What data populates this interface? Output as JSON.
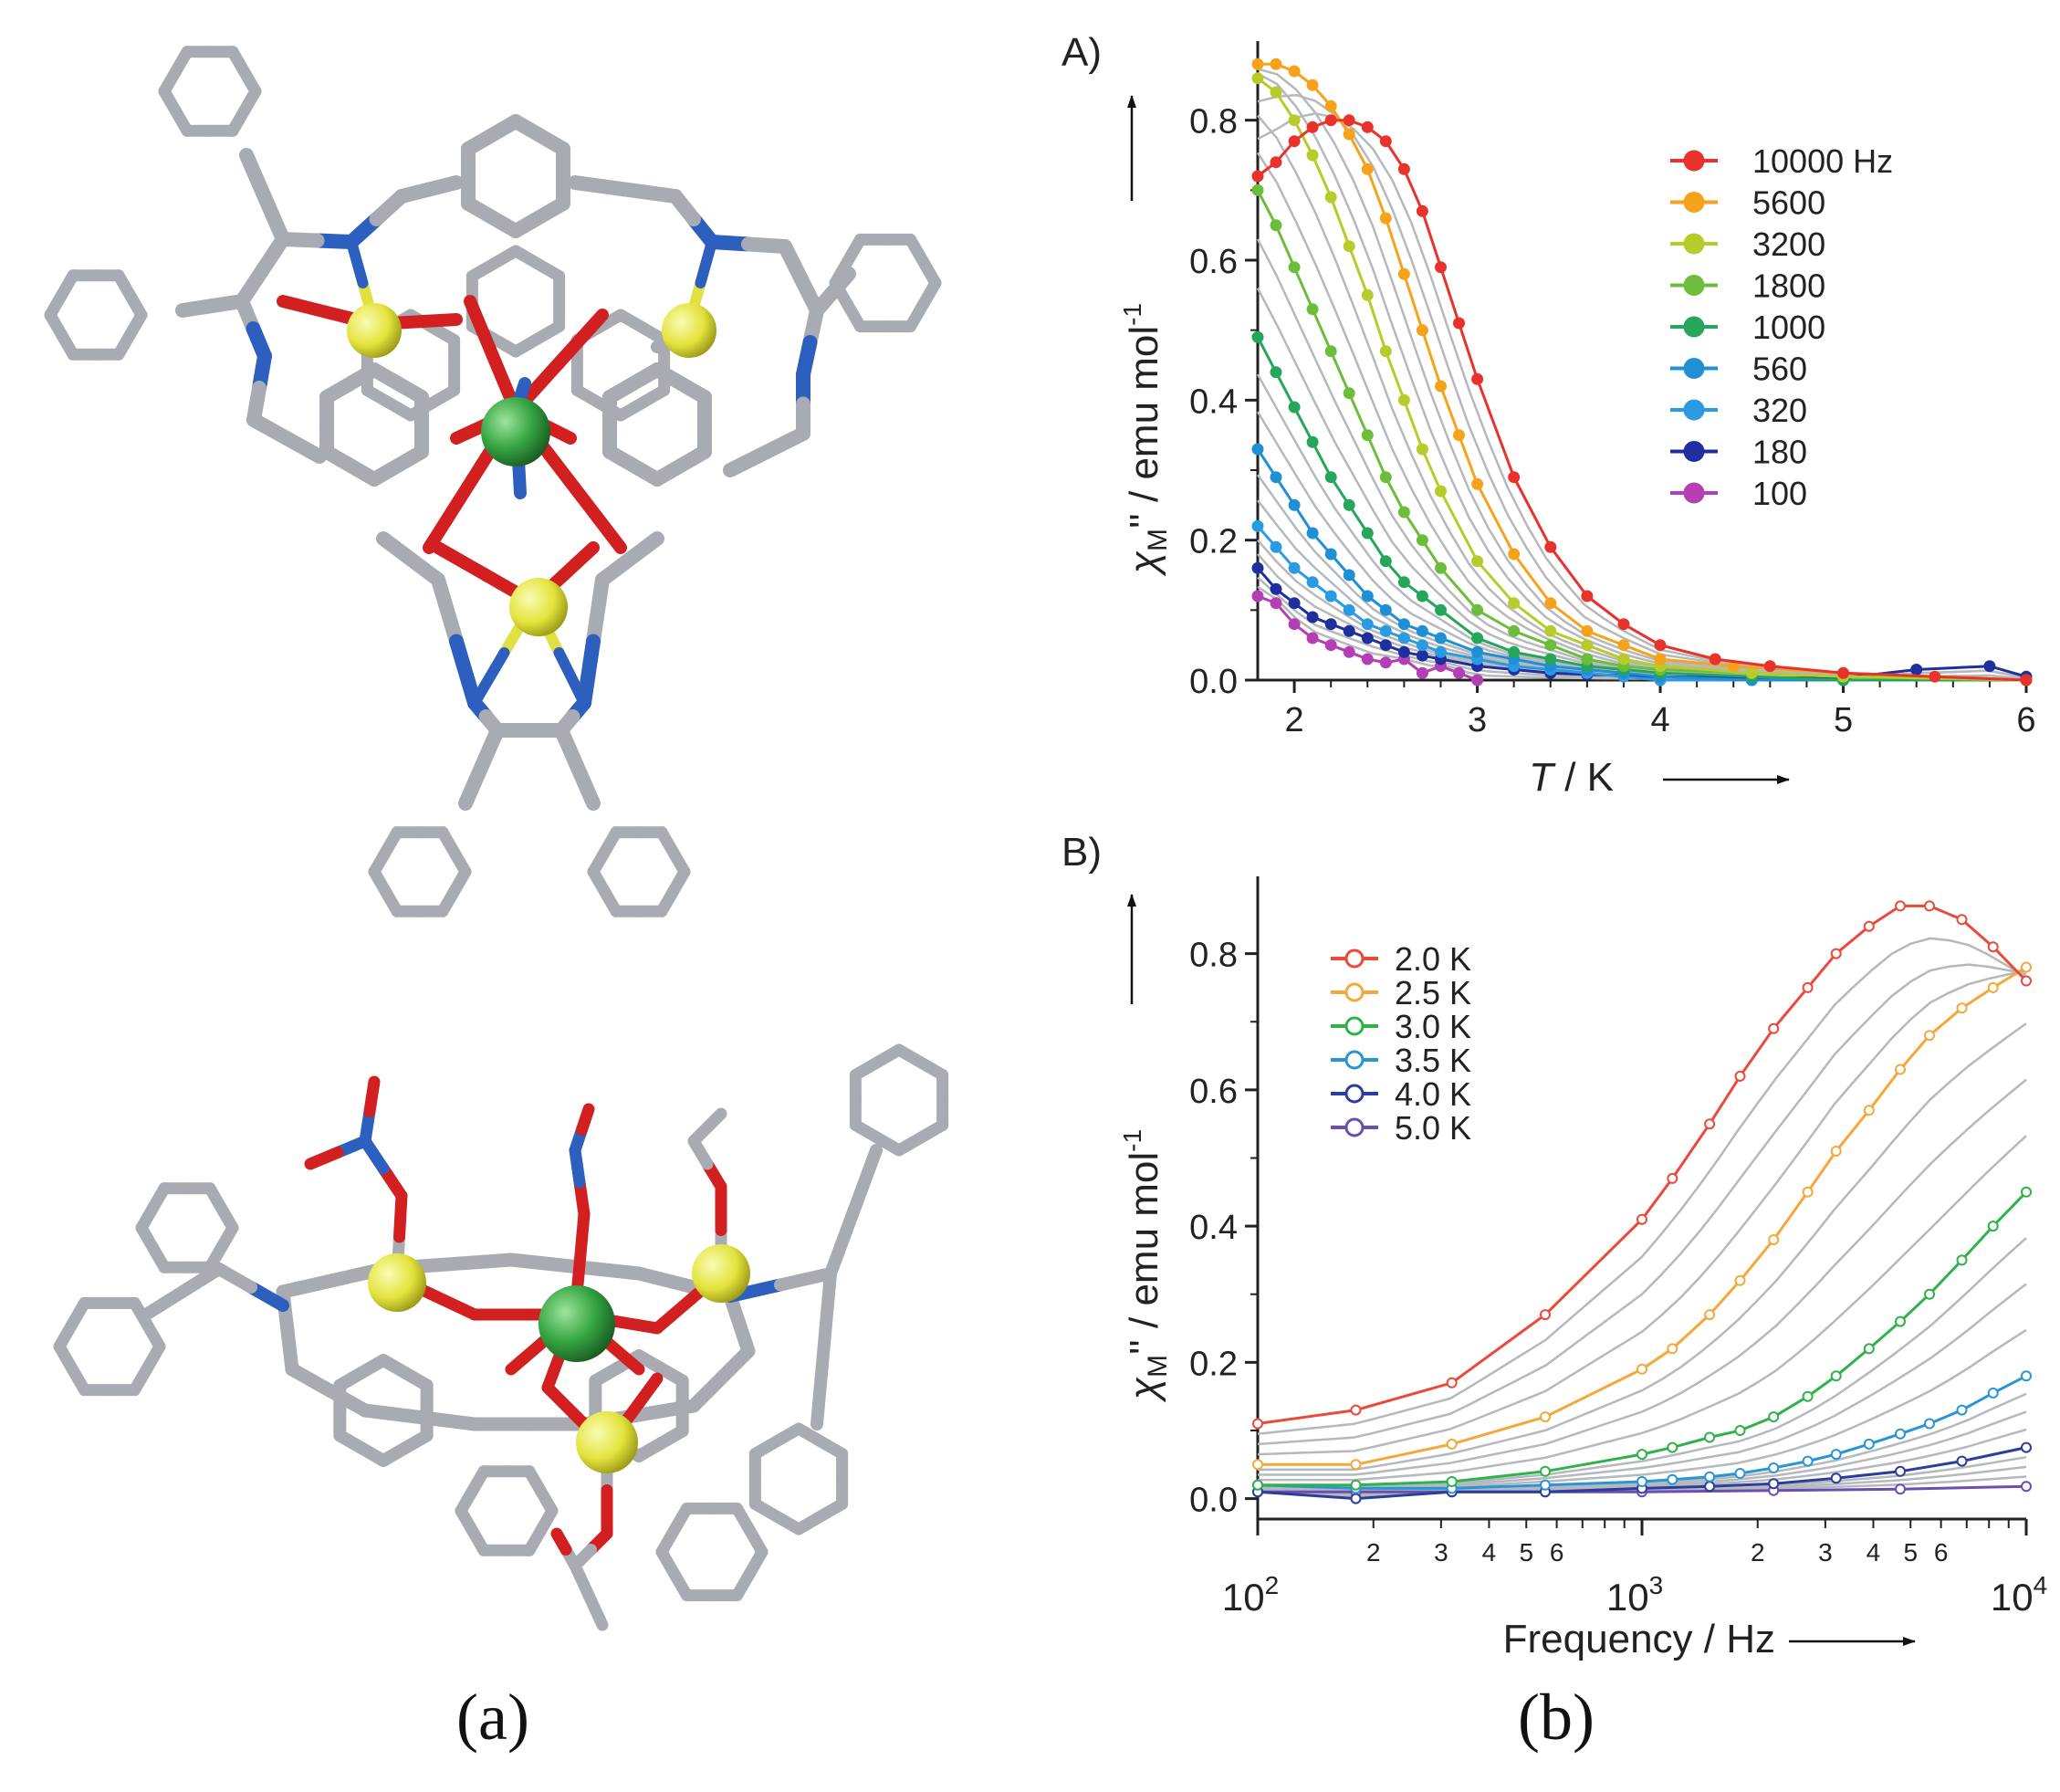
{
  "captions": {
    "left": "(a)",
    "right": "(b)"
  },
  "colors": {
    "carbon": "#a8acb2",
    "nitrogen": "#2d5fbf",
    "oxygen": "#d21f1f",
    "dysprosium": "#3aa64a",
    "metal": "#e7e74a",
    "gray_trace": "#b5b8bc"
  },
  "chart_data": [
    {
      "type": "line",
      "panel": "A)",
      "xlabel_italic": "T",
      "xlabel_rest": " / K",
      "ylabel_sym": "χ",
      "ylabel_sub": "M",
      "ylabel_rest": "'' / emu mol",
      "ylabel_sup": "-1",
      "xlim": [
        1.8,
        6
      ],
      "ylim": [
        0,
        0.9
      ],
      "xticks": [
        2,
        3,
        4,
        5,
        6
      ],
      "yticks": [
        "0.0",
        "0.2",
        "0.4",
        "0.6",
        "0.8"
      ],
      "legend_position": "top-right",
      "legend": [
        "10000 Hz",
        "5600",
        "3200",
        "1800",
        "1000",
        "560",
        "320",
        "180",
        "100"
      ],
      "series": [
        {
          "name": "10000 Hz",
          "color": "#e8322b",
          "marker": "filled",
          "x": [
            1.8,
            1.9,
            2.0,
            2.1,
            2.2,
            2.3,
            2.4,
            2.5,
            2.6,
            2.7,
            2.8,
            2.9,
            3.0,
            3.2,
            3.4,
            3.6,
            3.8,
            4.0,
            4.3,
            4.6,
            5.0,
            5.5,
            6.0
          ],
          "y": [
            0.72,
            0.74,
            0.77,
            0.79,
            0.8,
            0.8,
            0.79,
            0.77,
            0.73,
            0.67,
            0.59,
            0.51,
            0.43,
            0.29,
            0.19,
            0.12,
            0.08,
            0.05,
            0.03,
            0.02,
            0.01,
            0.005,
            0.0
          ]
        },
        {
          "name": "5600",
          "color": "#f7a21b",
          "marker": "filled",
          "x": [
            1.8,
            1.9,
            2.0,
            2.1,
            2.2,
            2.3,
            2.4,
            2.5,
            2.6,
            2.7,
            2.8,
            2.9,
            3.0,
            3.2,
            3.4,
            3.6,
            3.8,
            4.0,
            4.4,
            5.0,
            6.0
          ],
          "y": [
            0.88,
            0.88,
            0.87,
            0.85,
            0.82,
            0.78,
            0.73,
            0.66,
            0.58,
            0.5,
            0.42,
            0.35,
            0.28,
            0.18,
            0.11,
            0.07,
            0.05,
            0.03,
            0.02,
            0.01,
            0.0
          ]
        },
        {
          "name": "3200",
          "color": "#b7cc2a",
          "marker": "filled",
          "x": [
            1.8,
            1.9,
            2.0,
            2.1,
            2.2,
            2.3,
            2.4,
            2.5,
            2.6,
            2.7,
            2.8,
            3.0,
            3.2,
            3.4,
            3.6,
            3.8,
            4.0,
            4.5,
            5.0,
            6.0
          ],
          "y": [
            0.86,
            0.84,
            0.8,
            0.75,
            0.69,
            0.62,
            0.55,
            0.47,
            0.4,
            0.33,
            0.27,
            0.17,
            0.11,
            0.07,
            0.05,
            0.03,
            0.02,
            0.01,
            0.005,
            0.0
          ]
        },
        {
          "name": "1800",
          "color": "#6cbd3c",
          "marker": "filled",
          "x": [
            1.8,
            1.9,
            2.0,
            2.1,
            2.2,
            2.3,
            2.4,
            2.5,
            2.6,
            2.7,
            2.8,
            3.0,
            3.2,
            3.4,
            3.6,
            3.8,
            4.0,
            4.5,
            5.0,
            6.0
          ],
          "y": [
            0.7,
            0.65,
            0.59,
            0.53,
            0.47,
            0.41,
            0.35,
            0.29,
            0.24,
            0.2,
            0.16,
            0.1,
            0.07,
            0.05,
            0.03,
            0.02,
            0.015,
            0.01,
            0.005,
            0.0
          ]
        },
        {
          "name": "1000",
          "color": "#26a65b",
          "marker": "filled",
          "x": [
            1.8,
            1.9,
            2.0,
            2.1,
            2.2,
            2.3,
            2.4,
            2.5,
            2.6,
            2.7,
            2.8,
            3.0,
            3.2,
            3.4,
            3.6,
            3.8,
            4.0,
            4.5,
            5.0,
            6.0
          ],
          "y": [
            0.49,
            0.44,
            0.39,
            0.34,
            0.29,
            0.25,
            0.21,
            0.17,
            0.14,
            0.12,
            0.1,
            0.06,
            0.04,
            0.03,
            0.02,
            0.015,
            0.01,
            0.005,
            0.0,
            0.0
          ]
        },
        {
          "name": "560",
          "color": "#1f8fd6",
          "marker": "filled",
          "x": [
            1.8,
            1.9,
            2.0,
            2.1,
            2.2,
            2.3,
            2.4,
            2.5,
            2.6,
            2.7,
            2.8,
            3.0,
            3.2,
            3.4,
            3.6,
            3.8,
            4.0,
            4.5,
            5.0,
            6.0
          ],
          "y": [
            0.33,
            0.29,
            0.25,
            0.21,
            0.18,
            0.15,
            0.12,
            0.1,
            0.08,
            0.07,
            0.06,
            0.04,
            0.03,
            0.02,
            0.015,
            0.01,
            0.005,
            0.0,
            0.0,
            0.0
          ]
        },
        {
          "name": "320",
          "color": "#2a9be0",
          "marker": "filled",
          "x": [
            1.8,
            1.9,
            2.0,
            2.1,
            2.2,
            2.3,
            2.4,
            2.5,
            2.6,
            2.7,
            2.8,
            3.0,
            3.2,
            3.4,
            3.6,
            3.8,
            4.0,
            4.5,
            5.0,
            6.0
          ],
          "y": [
            0.22,
            0.19,
            0.16,
            0.14,
            0.12,
            0.1,
            0.08,
            0.07,
            0.06,
            0.05,
            0.04,
            0.03,
            0.02,
            0.015,
            0.01,
            0.005,
            0.0,
            0.0,
            0.0,
            0.0
          ]
        },
        {
          "name": "180",
          "color": "#1f2f9e",
          "marker": "filled",
          "x": [
            1.8,
            1.9,
            2.0,
            2.1,
            2.2,
            2.3,
            2.4,
            2.5,
            2.6,
            2.7,
            2.8,
            3.0,
            3.2,
            3.4,
            3.6,
            4.0,
            4.5,
            5.0,
            5.4,
            5.8,
            6.0
          ],
          "y": [
            0.16,
            0.13,
            0.11,
            0.09,
            0.08,
            0.07,
            0.06,
            0.05,
            0.04,
            0.035,
            0.03,
            0.02,
            0.015,
            0.01,
            0.008,
            0.005,
            0.003,
            0.003,
            0.015,
            0.02,
            0.005
          ]
        },
        {
          "name": "100",
          "color": "#b43fb4",
          "marker": "filled",
          "x": [
            1.8,
            1.9,
            2.0,
            2.1,
            2.2,
            2.3,
            2.4,
            2.5,
            2.6,
            2.7,
            2.8,
            2.9,
            3.0
          ],
          "y": [
            0.12,
            0.11,
            0.08,
            0.06,
            0.05,
            0.04,
            0.03,
            0.025,
            0.03,
            0.01,
            0.02,
            0.01,
            0.0
          ]
        }
      ]
    },
    {
      "type": "line",
      "panel": "B)",
      "xscale": "log",
      "xlabel": "Frequency / Hz",
      "ylabel_sym": "χ",
      "ylabel_sub": "M",
      "ylabel_rest": "'' / emu mol",
      "ylabel_sup": "-1",
      "xlim": [
        100,
        10000
      ],
      "ylim": [
        -0.03,
        0.9
      ],
      "xtick_major": [
        {
          "base": "10",
          "exp": "2",
          "v": 100
        },
        {
          "base": "10",
          "exp": "3",
          "v": 1000
        },
        {
          "base": "10",
          "exp": "4",
          "v": 10000
        }
      ],
      "xtick_minor_labels": [
        "2",
        "3",
        "4",
        "5",
        "6",
        "2",
        "3",
        "4",
        "5",
        "6"
      ],
      "yticks": [
        "0.0",
        "0.2",
        "0.4",
        "0.6",
        "0.8"
      ],
      "legend_position": "top-left",
      "legend": [
        "2.0 K",
        "2.5 K",
        "3.0 K",
        "3.5 K",
        "4.0 K",
        "5.0 K"
      ],
      "series": [
        {
          "name": "2.0 K",
          "color": "#ea4a3a",
          "marker": "open",
          "x": [
            100,
            180,
            320,
            560,
            1000,
            1200,
            1500,
            1800,
            2200,
            2700,
            3200,
            3900,
            4700,
            5600,
            6800,
            8200,
            10000
          ],
          "y": [
            0.11,
            0.13,
            0.17,
            0.27,
            0.41,
            0.47,
            0.55,
            0.62,
            0.69,
            0.75,
            0.8,
            0.84,
            0.87,
            0.87,
            0.85,
            0.81,
            0.76
          ]
        },
        {
          "name": "2.5 K",
          "color": "#f4a83b",
          "marker": "open",
          "x": [
            100,
            180,
            320,
            560,
            1000,
            1200,
            1500,
            1800,
            2200,
            2700,
            3200,
            3900,
            4700,
            5600,
            6800,
            8200,
            10000
          ],
          "y": [
            0.05,
            0.05,
            0.08,
            0.12,
            0.19,
            0.22,
            0.27,
            0.32,
            0.38,
            0.45,
            0.51,
            0.57,
            0.63,
            0.68,
            0.72,
            0.75,
            0.78
          ]
        },
        {
          "name": "3.0 K",
          "color": "#2fb24a",
          "marker": "open",
          "x": [
            100,
            180,
            320,
            560,
            1000,
            1200,
            1500,
            1800,
            2200,
            2700,
            3200,
            3900,
            4700,
            5600,
            6800,
            8200,
            10000
          ],
          "y": [
            0.02,
            0.02,
            0.025,
            0.04,
            0.065,
            0.075,
            0.09,
            0.1,
            0.12,
            0.15,
            0.18,
            0.22,
            0.26,
            0.3,
            0.35,
            0.4,
            0.45
          ]
        },
        {
          "name": "3.5 K",
          "color": "#2a95d5",
          "marker": "open",
          "x": [
            100,
            180,
            320,
            560,
            1000,
            1200,
            1500,
            1800,
            2200,
            2700,
            3200,
            3900,
            4700,
            5600,
            6800,
            8200,
            10000
          ],
          "y": [
            0.02,
            0.015,
            0.015,
            0.02,
            0.025,
            0.028,
            0.032,
            0.037,
            0.045,
            0.055,
            0.065,
            0.08,
            0.095,
            0.11,
            0.13,
            0.155,
            0.18
          ]
        },
        {
          "name": "4.0 K",
          "color": "#2c3d9e",
          "marker": "open",
          "x": [
            100,
            180,
            320,
            560,
            1000,
            1500,
            2200,
            3200,
            4700,
            6800,
            10000
          ],
          "y": [
            0.01,
            0.0,
            0.01,
            0.01,
            0.015,
            0.018,
            0.022,
            0.03,
            0.04,
            0.055,
            0.075
          ]
        },
        {
          "name": "5.0 K",
          "color": "#6a4fb0",
          "marker": "open",
          "x": [
            100,
            180,
            320,
            560,
            1000,
            2200,
            4700,
            10000
          ],
          "y": [
            0.01,
            0.01,
            0.01,
            0.01,
            0.01,
            0.012,
            0.014,
            0.018
          ]
        }
      ]
    }
  ]
}
